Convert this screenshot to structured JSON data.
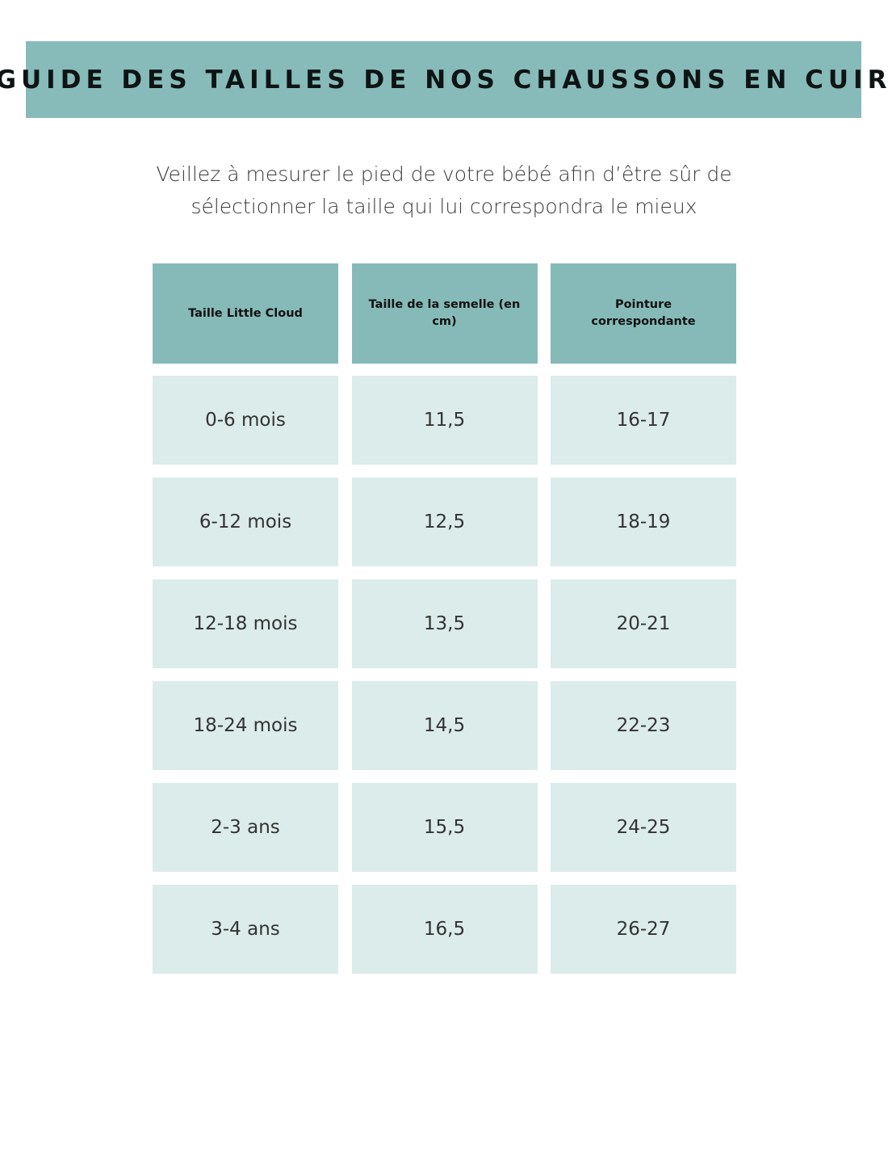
{
  "title": "GUIDE DES TAILLES DE NOS CHAUSSONS EN CUIR",
  "intro": [
    "Veillez à mesurer le pied de votre bébé afin d’être sûr de",
    "sélectionner la taille qui lui correspondra le mieux"
  ],
  "colors": {
    "accent": "#87bbba",
    "cell": "#dbecea"
  },
  "table": {
    "headers": [
      "Taille Little Cloud",
      "Taille de la semelle  (en cm)",
      "Pointure correspondante"
    ],
    "rows": [
      [
        "0-6 mois",
        "11,5",
        "16-17"
      ],
      [
        "6-12 mois",
        "12,5",
        "18-19"
      ],
      [
        "12-18 mois",
        "13,5",
        "20-21"
      ],
      [
        "18-24 mois",
        "14,5",
        "22-23"
      ],
      [
        "2-3 ans",
        "15,5",
        "24-25"
      ],
      [
        "3-4 ans",
        "16,5",
        "26-27"
      ]
    ]
  }
}
